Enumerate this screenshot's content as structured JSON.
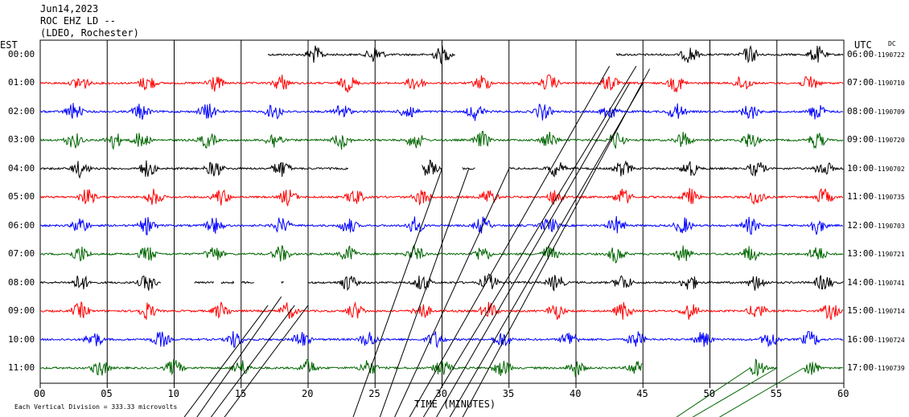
{
  "header": {
    "date": "Jun14,2023",
    "station": "ROC EHZ LD --",
    "network": "(LDEO, Rochester)"
  },
  "left_zone": "EST",
  "right_zone": "UTC",
  "dc_label": "DC",
  "footer": {
    "scale_note": "Each Vertical Division =  333.33 microvolts",
    "xlabel": "TIME (MINUTES)"
  },
  "colors": {
    "cycle": [
      "#000000",
      "#ff0000",
      "#0000ff",
      "#006600"
    ],
    "grid": "#000000"
  },
  "chart_data": {
    "type": "line",
    "title": "ROC EHZ LD --",
    "xlabel": "TIME (MINUTES)",
    "xlim": [
      0,
      60
    ],
    "x_ticks": [
      "00",
      "05",
      "10",
      "15",
      "20",
      "25",
      "30",
      "35",
      "40",
      "45",
      "50",
      "55",
      "60"
    ],
    "series": [
      {
        "est": "00:00",
        "utc": "06:00",
        "dc": "-1190722",
        "color": "#000000",
        "segments": [
          [
            17,
            31
          ],
          [
            43,
            45
          ],
          [
            45,
            60
          ]
        ],
        "bursts": [
          20.5,
          25,
          30,
          48.5,
          53,
          58
        ]
      },
      {
        "est": "01:00",
        "utc": "07:00",
        "dc": "-1190710",
        "color": "#ff0000",
        "segments": [
          [
            0,
            60
          ]
        ],
        "bursts": [
          3,
          8,
          13,
          18,
          23,
          28,
          33,
          38,
          42.5,
          47.5,
          52.5,
          57.5
        ]
      },
      {
        "est": "02:00",
        "utc": "08:00",
        "dc": "-1190709",
        "color": "#0000ff",
        "segments": [
          [
            0,
            60
          ]
        ],
        "bursts": [
          2.5,
          7.5,
          12.5,
          17.5,
          22.5,
          27.5,
          32.5,
          37.5,
          42.5,
          47.5,
          53,
          58
        ]
      },
      {
        "est": "03:00",
        "utc": "09:00",
        "dc": "-1190720",
        "color": "#006600",
        "segments": [
          [
            0,
            60
          ]
        ],
        "bursts": [
          2.5,
          5.5,
          7.5,
          12.5,
          17.5,
          22.5,
          28,
          33,
          38,
          43,
          48,
          53,
          58
        ]
      },
      {
        "est": "04:00",
        "utc": "10:00",
        "dc": "-1190702",
        "color": "#000000",
        "segments": [
          [
            0,
            23
          ],
          [
            28.5,
            30
          ],
          [
            31.5,
            32.5
          ],
          [
            35,
            35.5
          ],
          [
            35.5,
            60
          ]
        ],
        "bursts": [
          3,
          8,
          13,
          18,
          29,
          38.5,
          43.5,
          48.5,
          53.5,
          58.5
        ]
      },
      {
        "est": "05:00",
        "utc": "11:00",
        "dc": "-1190735",
        "color": "#ff0000",
        "segments": [
          [
            0,
            60
          ]
        ],
        "bursts": [
          3.5,
          8.5,
          13.5,
          18.5,
          23.5,
          28.5,
          33.5,
          38.5,
          43.5,
          48.5,
          53.5,
          58.5
        ]
      },
      {
        "est": "06:00",
        "utc": "12:00",
        "dc": "-1190703",
        "color": "#0000ff",
        "segments": [
          [
            0,
            60
          ]
        ],
        "bursts": [
          3,
          8,
          13,
          18,
          23,
          28,
          33,
          38,
          43,
          48,
          53,
          58
        ]
      },
      {
        "est": "07:00",
        "utc": "13:00",
        "dc": "-1190721",
        "color": "#006600",
        "segments": [
          [
            0,
            60
          ]
        ],
        "bursts": [
          3,
          8,
          13,
          18,
          23,
          28,
          33,
          38,
          43,
          48,
          53,
          58
        ]
      },
      {
        "est": "08:00",
        "utc": "14:00",
        "dc": "-1190741",
        "color": "#000000",
        "segments": [
          [
            0,
            9
          ],
          [
            11.5,
            13
          ],
          [
            13.5,
            14.5
          ],
          [
            15,
            16
          ],
          [
            18,
            18.2
          ],
          [
            20,
            60
          ]
        ],
        "bursts": [
          3,
          8,
          23,
          28.5,
          33.5,
          38.5,
          43.5,
          48.5,
          53.5,
          58.5
        ]
      },
      {
        "est": "09:00",
        "utc": "15:00",
        "dc": "-1190714",
        "color": "#ff0000",
        "segments": [
          [
            0,
            60
          ]
        ],
        "bursts": [
          3,
          8,
          13.5,
          18.5,
          23.5,
          28.5,
          33.5,
          38.5,
          43.5,
          48.5,
          53.5,
          59
        ]
      },
      {
        "est": "10:00",
        "utc": "16:00",
        "dc": "-1190724",
        "color": "#0000ff",
        "segments": [
          [
            0,
            60
          ]
        ],
        "bursts": [
          4,
          9,
          14.5,
          19.5,
          24.5,
          29.5,
          34.5,
          39.5,
          44.5,
          49.5,
          54.5,
          57.5
        ]
      },
      {
        "est": "11:00",
        "utc": "17:00",
        "dc": "-1190739",
        "color": "#006600",
        "segments": [
          [
            0,
            45
          ],
          [
            53,
            55
          ],
          [
            57,
            60
          ]
        ],
        "bursts": [
          4.5,
          10,
          15,
          20,
          24.5,
          30,
          34.5,
          40,
          44.5,
          53.5,
          57.5
        ]
      }
    ],
    "event_traces": [
      {
        "color": "#000000",
        "points": [
          [
            10,
            13.2
          ],
          [
            17,
            8.8
          ]
        ]
      },
      {
        "color": "#000000",
        "points": [
          [
            11,
            13.2
          ],
          [
            18,
            8.5
          ]
        ]
      },
      {
        "color": "#000000",
        "points": [
          [
            12,
            13.2
          ],
          [
            19,
            8.8
          ]
        ]
      },
      {
        "color": "#000000",
        "points": [
          [
            13,
            13.2
          ],
          [
            20,
            8.8
          ]
        ]
      },
      {
        "color": "#000000",
        "points": [
          [
            23,
            13.2
          ],
          [
            30,
            4
          ]
        ]
      },
      {
        "color": "#000000",
        "points": [
          [
            25,
            13.2
          ],
          [
            32,
            4
          ]
        ]
      },
      {
        "color": "#000000",
        "points": [
          [
            26,
            13.2
          ],
          [
            35,
            4
          ]
        ]
      },
      {
        "color": "#000000",
        "points": [
          [
            27,
            13.2
          ],
          [
            42.5,
            0.4
          ]
        ]
      },
      {
        "color": "#000000",
        "points": [
          [
            28,
            13.2
          ],
          [
            44.5,
            0.4
          ]
        ]
      },
      {
        "color": "#000000",
        "points": [
          [
            29,
            13.2
          ],
          [
            44,
            1
          ]
        ]
      },
      {
        "color": "#000000",
        "points": [
          [
            30,
            13.2
          ],
          [
            45,
            1
          ]
        ]
      },
      {
        "color": "#000000",
        "points": [
          [
            31,
            13.2
          ],
          [
            45.5,
            0.5
          ]
        ]
      },
      {
        "color": "#006600",
        "points": [
          [
            46,
            13.2
          ],
          [
            53,
            11
          ]
        ]
      },
      {
        "color": "#006600",
        "points": [
          [
            47,
            13.2
          ],
          [
            55,
            11
          ]
        ]
      },
      {
        "color": "#006600",
        "points": [
          [
            49,
            13.2
          ],
          [
            57,
            11
          ]
        ]
      }
    ]
  }
}
